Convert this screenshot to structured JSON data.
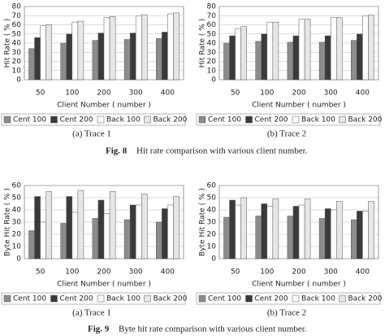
{
  "chart_data": [
    {
      "type": "bar",
      "caption": "(a) Trace 1",
      "y_label": "Hit Rate ( % )",
      "x_label": "Client Number ( number )",
      "categories": [
        "50",
        "100",
        "200",
        "300",
        "400"
      ],
      "ylim": [
        0,
        80
      ],
      "yticks": [
        0,
        10,
        20,
        30,
        40,
        50,
        60,
        70,
        80
      ],
      "grid": true,
      "series": [
        {
          "name": "Cent 100",
          "color": "#8c8c8c",
          "values": [
            34,
            40,
            43,
            44,
            45
          ]
        },
        {
          "name": "Cent 200",
          "color": "#3a3a3a",
          "values": [
            46,
            50,
            51,
            51,
            52
          ]
        },
        {
          "name": "Back 100",
          "color": "#ffffff",
          "values": [
            59,
            63,
            68,
            70,
            72
          ]
        },
        {
          "name": "Back 200",
          "color": "#e6e6e6",
          "values": [
            60,
            64,
            69,
            71,
            73
          ]
        }
      ]
    },
    {
      "type": "bar",
      "caption": "(b) Trace 2",
      "y_label": "Hit Rate ( % )",
      "x_label": "Client Number ( number )",
      "categories": [
        "50",
        "100",
        "200",
        "300",
        "400"
      ],
      "ylim": [
        0,
        80
      ],
      "yticks": [
        0,
        10,
        20,
        30,
        40,
        50,
        60,
        70,
        80
      ],
      "grid": true,
      "series": [
        {
          "name": "Cent 100",
          "color": "#8c8c8c",
          "values": [
            40,
            42,
            41,
            41,
            43
          ]
        },
        {
          "name": "Cent 200",
          "color": "#3a3a3a",
          "values": [
            48,
            50,
            48,
            48,
            50
          ]
        },
        {
          "name": "Back 100",
          "color": "#ffffff",
          "values": [
            56,
            63,
            66,
            68,
            70
          ]
        },
        {
          "name": "Back 200",
          "color": "#e6e6e6",
          "values": [
            58,
            63,
            66,
            68,
            71
          ]
        }
      ]
    },
    {
      "type": "bar",
      "caption": "(a) Trace 1",
      "y_label": "Byte Hit Rate ( % )",
      "x_label": "Client Number ( number )",
      "categories": [
        "50",
        "100",
        "200",
        "300",
        "400"
      ],
      "ylim": [
        0,
        60
      ],
      "yticks": [
        0,
        10,
        20,
        30,
        40,
        50,
        60
      ],
      "grid": true,
      "series": [
        {
          "name": "Cent 100",
          "color": "#8c8c8c",
          "values": [
            23,
            29,
            33,
            32,
            30
          ]
        },
        {
          "name": "Cent 200",
          "color": "#3a3a3a",
          "values": [
            51,
            51,
            48,
            44,
            41
          ]
        },
        {
          "name": "Back 100",
          "color": "#ffffff",
          "values": [
            30,
            38,
            37,
            44,
            44
          ]
        },
        {
          "name": "Back 200",
          "color": "#e6e6e6",
          "values": [
            55,
            56,
            55,
            53,
            51
          ]
        }
      ]
    },
    {
      "type": "bar",
      "caption": "(b) Trace 2",
      "y_label": "Byte Hit Rate ( % )",
      "x_label": "Client Number ( number )",
      "categories": [
        "50",
        "100",
        "200",
        "300",
        "400"
      ],
      "ylim": [
        0,
        60
      ],
      "yticks": [
        0,
        10,
        20,
        30,
        40,
        50,
        60
      ],
      "grid": true,
      "series": [
        {
          "name": "Cent 100",
          "color": "#8c8c8c",
          "values": [
            34,
            35,
            35,
            33,
            32
          ]
        },
        {
          "name": "Cent 200",
          "color": "#3a3a3a",
          "values": [
            48,
            45,
            43,
            41,
            39
          ]
        },
        {
          "name": "Back 100",
          "color": "#ffffff",
          "values": [
            44,
            43,
            44,
            40,
            39
          ]
        },
        {
          "name": "Back 200",
          "color": "#e6e6e6",
          "values": [
            50,
            49,
            49,
            47,
            47
          ]
        }
      ]
    }
  ],
  "figure_captions": [
    {
      "label": "Fig. 8",
      "text": "Hit rate comparison with various client number."
    },
    {
      "label": "Fig. 9",
      "text": "Byte hit rate comparison with various client number."
    }
  ]
}
